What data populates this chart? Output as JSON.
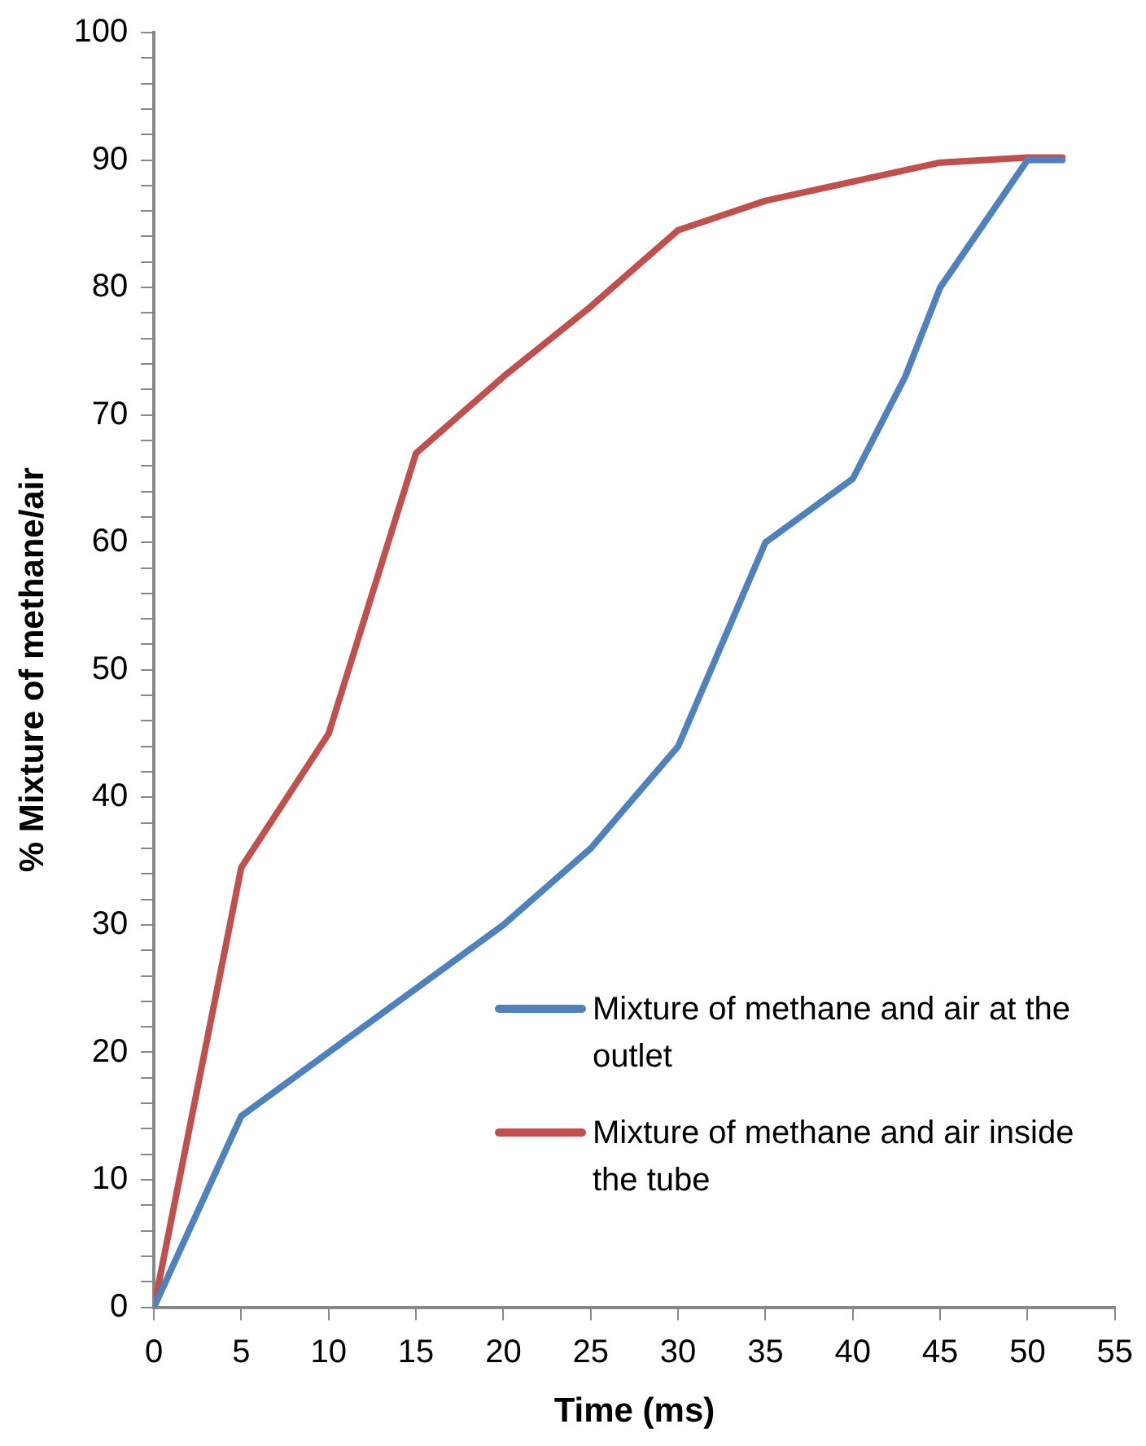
{
  "chart_data": {
    "type": "line",
    "xlabel": "Time (ms)",
    "ylabel": "% Mixture of methane/air",
    "xlim": [
      0,
      55
    ],
    "xticks": [
      0,
      5,
      10,
      15,
      20,
      25,
      30,
      35,
      40,
      45,
      50,
      55
    ],
    "ylim": [
      0,
      100
    ],
    "yticks": [
      0,
      {
        "value": 2,
        "label": null
      },
      {
        "value": 4,
        "label": null
      },
      {
        "value": 6,
        "label": null
      },
      {
        "value": 8,
        "label": null
      },
      10,
      {
        "value": 12,
        "label": null
      },
      {
        "value": 14,
        "label": null
      },
      {
        "value": 16,
        "label": null
      },
      {
        "value": 18,
        "label": null
      },
      20,
      {
        "value": 22,
        "label": null
      },
      {
        "value": 24,
        "label": null
      },
      {
        "value": 26,
        "label": null
      },
      {
        "value": 28,
        "label": null
      },
      30,
      {
        "value": 32,
        "label": null
      },
      {
        "value": 34,
        "label": null
      },
      {
        "value": 36,
        "label": null
      },
      {
        "value": 38,
        "label": null
      },
      40,
      {
        "value": 42,
        "label": null
      },
      {
        "value": 44,
        "label": null
      },
      {
        "value": 46,
        "label": null
      },
      {
        "value": 48,
        "label": null
      },
      50,
      {
        "value": 52,
        "label": null
      },
      {
        "value": 54,
        "label": null
      },
      {
        "value": 56,
        "label": null
      },
      {
        "value": 58,
        "label": null
      },
      60,
      {
        "value": 62,
        "label": null
      },
      {
        "value": 64,
        "label": null
      },
      {
        "value": 66,
        "label": null
      },
      {
        "value": 68,
        "label": null
      },
      70,
      {
        "value": 72,
        "label": null
      },
      {
        "value": 74,
        "label": null
      },
      {
        "value": 76,
        "label": null
      },
      {
        "value": 78,
        "label": null
      },
      80,
      {
        "value": 82,
        "label": null
      },
      {
        "value": 84,
        "label": null
      },
      {
        "value": 86,
        "label": null
      },
      {
        "value": 88,
        "label": null
      },
      90,
      {
        "value": 92,
        "label": null
      },
      {
        "value": 94,
        "label": null
      },
      {
        "value": 96,
        "label": null
      },
      {
        "value": 98,
        "label": null
      },
      100
    ],
    "grid": false,
    "legend": "bottom right",
    "marker": "none",
    "line_style": "solid",
    "series": [
      {
        "name": "Mixture of methane and air at the outlet",
        "color": "#4f81bd",
        "x": [
          0,
          5,
          10,
          15,
          20,
          25,
          30,
          35,
          40,
          43,
          45,
          50,
          52
        ],
        "values": [
          0,
          15,
          20,
          25,
          30,
          36,
          44,
          60,
          65,
          73,
          80,
          90,
          90
        ]
      },
      {
        "name": "Mixture of methane and air inside the tube",
        "color": "#c0504d",
        "x": [
          0,
          5,
          10,
          15,
          20,
          25,
          30,
          35,
          40,
          45,
          50,
          52
        ],
        "values": [
          0,
          34.5,
          45,
          67,
          73,
          78.5,
          84.5,
          86.8,
          88.3,
          89.8,
          90.2,
          90.2
        ]
      }
    ]
  }
}
